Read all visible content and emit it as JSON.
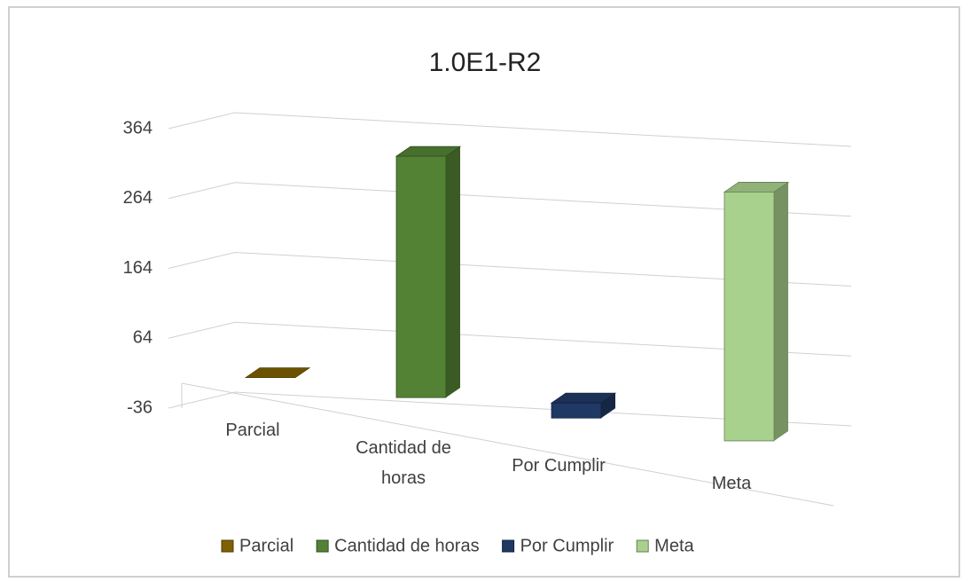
{
  "chart_data": {
    "type": "bar3d",
    "title": "1.0E1-R2",
    "categories": [
      "Parcial",
      "Cantidad de horas",
      "Por Cumplir",
      "Meta"
    ],
    "series": [
      {
        "name": "Parcial",
        "color": "#7f6000",
        "values": [
          0,
          null,
          null,
          null
        ]
      },
      {
        "name": "Cantidad de horas",
        "color": "#548235",
        "values": [
          null,
          320,
          null,
          null
        ]
      },
      {
        "name": "Por Cumplir",
        "color": "#203864",
        "values": [
          null,
          null,
          20,
          null
        ]
      },
      {
        "name": "Meta",
        "color": "#a9d18e",
        "values": [
          null,
          null,
          null,
          330
        ]
      }
    ],
    "ylim": [
      -36,
      364
    ],
    "yticks": [
      -36,
      64,
      164,
      264,
      364
    ],
    "grid": true,
    "legend": "bottom"
  }
}
